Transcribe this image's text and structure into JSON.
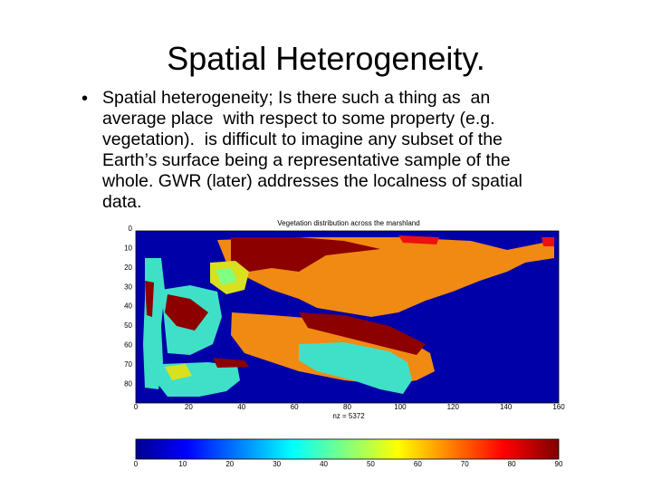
{
  "header": {
    "title": "Spatial Heterogeneity."
  },
  "bullet": {
    "lines": [
      "Spatial heterogeneity; Is there such a thing as  an",
      "average place  with respect to some property (e.g.",
      "vegetation).  is difficult to imagine any subset of the",
      "Earth’s surface being a representative sample of the",
      "whole. GWR (later) addresses the localness of spatial",
      "data."
    ]
  },
  "figure": {
    "title": "Vegetation distribution across the marshland",
    "xlabel": "nz = 5372",
    "xticks": [
      0,
      20,
      40,
      60,
      80,
      100,
      120,
      140,
      160
    ],
    "yticks": [
      0,
      10,
      20,
      30,
      40,
      50,
      60,
      70,
      80
    ],
    "colorbar_ticks": [
      0,
      10,
      20,
      30,
      40,
      50,
      60,
      70,
      80,
      90
    ]
  }
}
